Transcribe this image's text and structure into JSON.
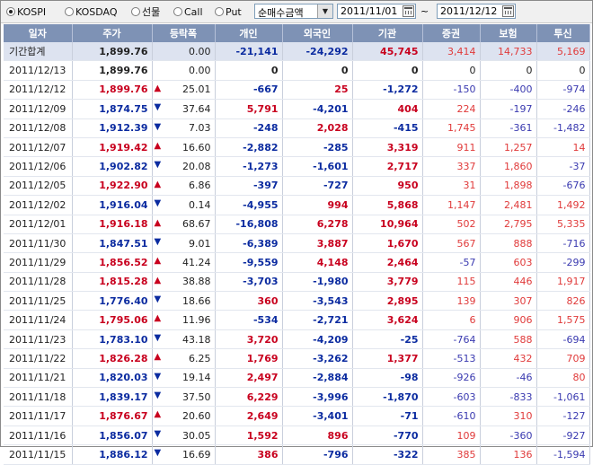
{
  "toolbar": {
    "market_radios": [
      {
        "label": "KOSPI",
        "selected": true
      },
      {
        "label": "KOSDAQ",
        "selected": false
      },
      {
        "label": "선물",
        "selected": false
      },
      {
        "label": "Call",
        "selected": false
      },
      {
        "label": "Put",
        "selected": false
      }
    ],
    "mode_select": "순매수금액",
    "date_from": "2011/11/01",
    "date_sep": "~",
    "date_to": "2011/12/12"
  },
  "columns": [
    "일자",
    "주가",
    "등락폭",
    "개인",
    "외국인",
    "기관",
    "증권",
    "보험",
    "투신"
  ],
  "rows": [
    {
      "date": "기간합계",
      "price": "1,899.76",
      "dir": "",
      "change": "0.00",
      "ind": "-21,141",
      "frg": "-24,292",
      "inst": "45,745",
      "sec": "3,414",
      "ins": "14,733",
      "fund": "5,169",
      "sum": true
    },
    {
      "date": "2011/12/13",
      "price": "1,899.76",
      "dir": "",
      "change": "0.00",
      "ind": "0",
      "frg": "0",
      "inst": "0",
      "sec": "0",
      "ins": "0",
      "fund": "0"
    },
    {
      "date": "2011/12/12",
      "price": "1,899.76",
      "dir": "up",
      "change": "25.01",
      "ind": "-667",
      "frg": "25",
      "inst": "-1,272",
      "sec": "-150",
      "ins": "-400",
      "fund": "-974"
    },
    {
      "date": "2011/12/09",
      "price": "1,874.75",
      "dir": "dn",
      "change": "37.64",
      "ind": "5,791",
      "frg": "-4,201",
      "inst": "404",
      "sec": "224",
      "ins": "-197",
      "fund": "-246"
    },
    {
      "date": "2011/12/08",
      "price": "1,912.39",
      "dir": "dn",
      "change": "7.03",
      "ind": "-248",
      "frg": "2,028",
      "inst": "-415",
      "sec": "1,745",
      "ins": "-361",
      "fund": "-1,482"
    },
    {
      "date": "2011/12/07",
      "price": "1,919.42",
      "dir": "up",
      "change": "16.60",
      "ind": "-2,882",
      "frg": "-285",
      "inst": "3,319",
      "sec": "911",
      "ins": "1,257",
      "fund": "14"
    },
    {
      "date": "2011/12/06",
      "price": "1,902.82",
      "dir": "dn",
      "change": "20.08",
      "ind": "-1,273",
      "frg": "-1,601",
      "inst": "2,717",
      "sec": "337",
      "ins": "1,860",
      "fund": "-37"
    },
    {
      "date": "2011/12/05",
      "price": "1,922.90",
      "dir": "up",
      "change": "6.86",
      "ind": "-397",
      "frg": "-727",
      "inst": "950",
      "sec": "31",
      "ins": "1,898",
      "fund": "-676"
    },
    {
      "date": "2011/12/02",
      "price": "1,916.04",
      "dir": "dn",
      "change": "0.14",
      "ind": "-4,955",
      "frg": "994",
      "inst": "5,868",
      "sec": "1,147",
      "ins": "2,481",
      "fund": "1,492"
    },
    {
      "date": "2011/12/01",
      "price": "1,916.18",
      "dir": "up",
      "change": "68.67",
      "ind": "-16,808",
      "frg": "6,278",
      "inst": "10,964",
      "sec": "502",
      "ins": "2,795",
      "fund": "5,335"
    },
    {
      "date": "2011/11/30",
      "price": "1,847.51",
      "dir": "dn",
      "change": "9.01",
      "ind": "-6,389",
      "frg": "3,887",
      "inst": "1,670",
      "sec": "567",
      "ins": "888",
      "fund": "-716"
    },
    {
      "date": "2011/11/29",
      "price": "1,856.52",
      "dir": "up",
      "change": "41.24",
      "ind": "-9,559",
      "frg": "4,148",
      "inst": "2,464",
      "sec": "-57",
      "ins": "603",
      "fund": "-299"
    },
    {
      "date": "2011/11/28",
      "price": "1,815.28",
      "dir": "up",
      "change": "38.88",
      "ind": "-3,703",
      "frg": "-1,980",
      "inst": "3,779",
      "sec": "115",
      "ins": "446",
      "fund": "1,917"
    },
    {
      "date": "2011/11/25",
      "price": "1,776.40",
      "dir": "dn",
      "change": "18.66",
      "ind": "360",
      "frg": "-3,543",
      "inst": "2,895",
      "sec": "139",
      "ins": "307",
      "fund": "826"
    },
    {
      "date": "2011/11/24",
      "price": "1,795.06",
      "dir": "up",
      "change": "11.96",
      "ind": "-534",
      "frg": "-2,721",
      "inst": "3,624",
      "sec": "6",
      "ins": "906",
      "fund": "1,575"
    },
    {
      "date": "2011/11/23",
      "price": "1,783.10",
      "dir": "dn",
      "change": "43.18",
      "ind": "3,720",
      "frg": "-4,209",
      "inst": "-25",
      "sec": "-764",
      "ins": "588",
      "fund": "-694"
    },
    {
      "date": "2011/11/22",
      "price": "1,826.28",
      "dir": "up",
      "change": "6.25",
      "ind": "1,769",
      "frg": "-3,262",
      "inst": "1,377",
      "sec": "-513",
      "ins": "432",
      "fund": "709"
    },
    {
      "date": "2011/11/21",
      "price": "1,820.03",
      "dir": "dn",
      "change": "19.14",
      "ind": "2,497",
      "frg": "-2,884",
      "inst": "-98",
      "sec": "-926",
      "ins": "-46",
      "fund": "80"
    },
    {
      "date": "2011/11/18",
      "price": "1,839.17",
      "dir": "dn",
      "change": "37.50",
      "ind": "6,229",
      "frg": "-3,996",
      "inst": "-1,870",
      "sec": "-603",
      "ins": "-833",
      "fund": "-1,061"
    },
    {
      "date": "2011/11/17",
      "price": "1,876.67",
      "dir": "up",
      "change": "20.60",
      "ind": "2,649",
      "frg": "-3,401",
      "inst": "-71",
      "sec": "-610",
      "ins": "310",
      "fund": "-127"
    },
    {
      "date": "2011/11/16",
      "price": "1,856.07",
      "dir": "dn",
      "change": "30.05",
      "ind": "1,592",
      "frg": "896",
      "inst": "-770",
      "sec": "109",
      "ins": "-360",
      "fund": "-927"
    },
    {
      "date": "2011/11/15",
      "price": "1,886.12",
      "dir": "dn",
      "change": "16.69",
      "ind": "386",
      "frg": "-796",
      "inst": "-322",
      "sec": "385",
      "ins": "136",
      "fund": "-1,594"
    }
  ],
  "colors": {
    "header_bg": "#7e92b5",
    "up": "#c8001e",
    "down": "#0b2ba0",
    "sum_row_bg": "#dde3f0"
  },
  "icons": {
    "up": "triangle-up-icon",
    "down": "triangle-down-icon",
    "calendar": "calendar-icon",
    "dropdown": "chevron-down-icon"
  }
}
